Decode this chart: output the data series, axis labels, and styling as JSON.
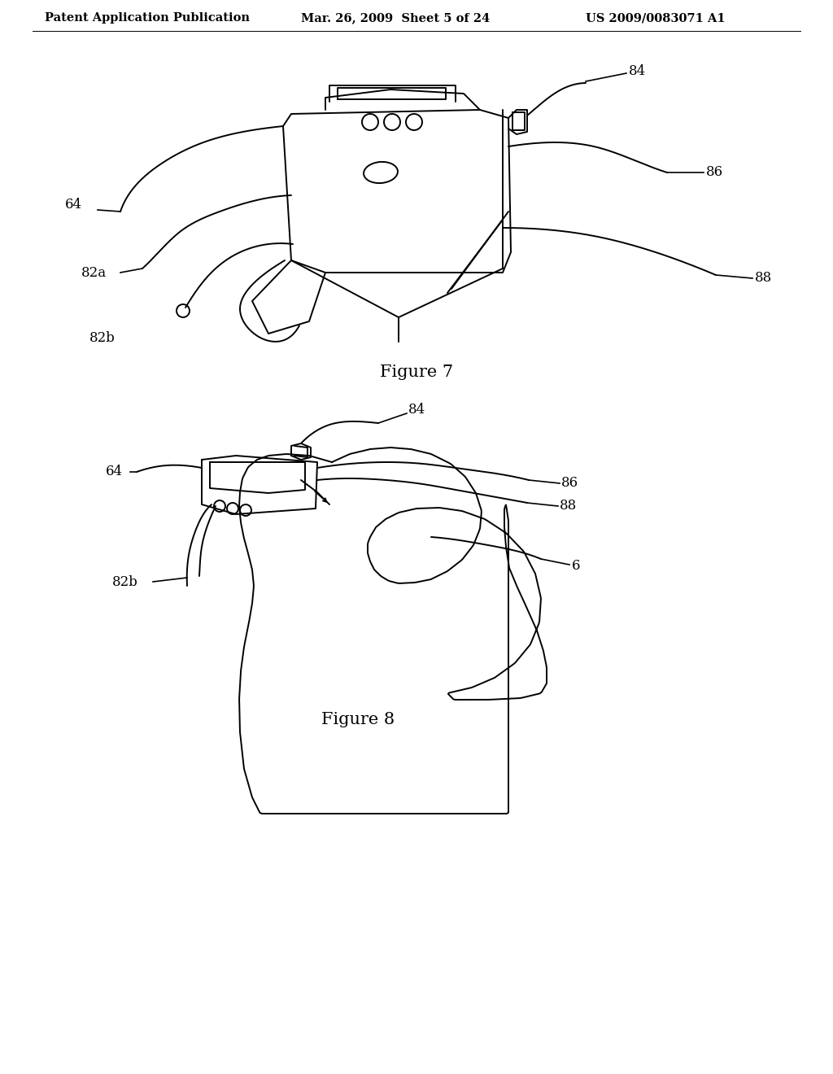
{
  "background_color": "#ffffff",
  "header_left": "Patent Application Publication",
  "header_center": "Mar. 26, 2009  Sheet 5 of 24",
  "header_right": "US 2009/0083071 A1",
  "figure7_caption": "Figure 7",
  "figure8_caption": "Figure 8",
  "header_fontsize": 10.5,
  "caption_fontsize": 15,
  "label_fontsize": 12,
  "line_color": "#000000",
  "line_width": 1.4
}
